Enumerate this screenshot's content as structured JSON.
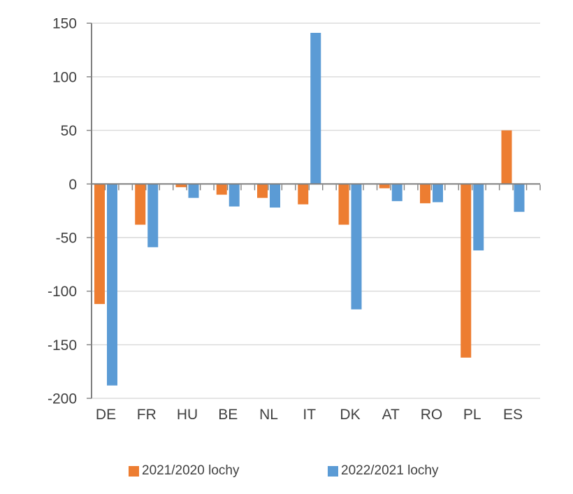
{
  "chart_data": {
    "type": "bar",
    "title": "",
    "xlabel": "",
    "ylabel": "",
    "categories": [
      "DE",
      "FR",
      "HU",
      "BE",
      "NL",
      "IT",
      "DK",
      "AT",
      "RO",
      "PL",
      "ES"
    ],
    "series": [
      {
        "name": "2021/2020 lochy",
        "color": "#ED7D31",
        "values": [
          -112,
          -38,
          -3,
          -10,
          -13,
          -19,
          -38,
          -4,
          -18,
          -162,
          50
        ]
      },
      {
        "name": "2022/2021 lochy",
        "color": "#5B9BD5",
        "values": [
          -188,
          -59,
          -13,
          -21,
          -22,
          141,
          -117,
          -16,
          -17,
          -62,
          -26
        ]
      }
    ],
    "ylim": [
      -200,
      150
    ],
    "y_ticks": [
      150,
      100,
      50,
      0,
      -50,
      -100,
      -150,
      -200
    ],
    "grid": "horizontal-only",
    "legend_position": "bottom",
    "colors": {
      "axis_line": "#808080",
      "grid_line": "#D9D9D9",
      "tick_label": "#404040",
      "background": "#FFFFFF"
    }
  }
}
